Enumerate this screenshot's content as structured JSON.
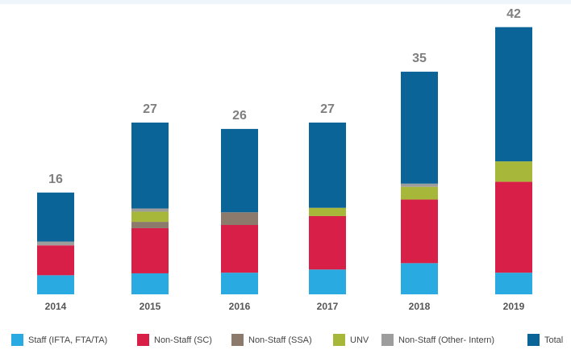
{
  "chart_data": {
    "type": "stacked-bar",
    "categories": [
      "2014",
      "2015",
      "2016",
      "2017",
      "2018",
      "2019"
    ],
    "series": [
      {
        "name": "Staff (IFTA, FTA/TA)",
        "color": "#29abe2",
        "values": [
          3,
          3.3,
          3.4,
          3.9,
          4.9,
          3.4
        ]
      },
      {
        "name": "Non-Staff (SC)",
        "color": "#d71f48",
        "values": [
          4.7,
          7.1,
          7.5,
          8.4,
          10,
          14.3
        ]
      },
      {
        "name": "Non-Staff (SSA)",
        "color": "#8c7b6c",
        "values": [
          0,
          1,
          2,
          0,
          0,
          0
        ]
      },
      {
        "name": "UNV",
        "color": "#a6b73a",
        "values": [
          0,
          1.6,
          0,
          1.3,
          2,
          3.2
        ]
      },
      {
        "name": "Non-Staff (Other- Intern)",
        "color": "#9d9d9d",
        "values": [
          0.6,
          0.5,
          0,
          0,
          0.5,
          0
        ]
      },
      {
        "name": "Total",
        "color": "#0a6497",
        "values": [
          16,
          27,
          26,
          27,
          35,
          42
        ]
      }
    ],
    "ylim": [
      0,
      45
    ]
  }
}
